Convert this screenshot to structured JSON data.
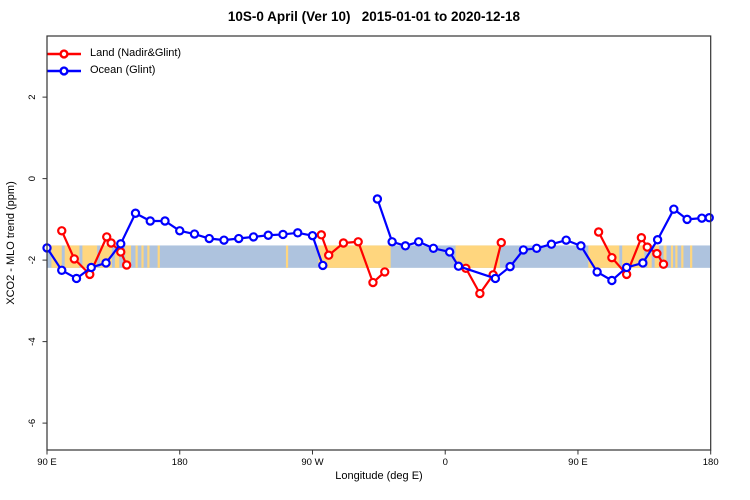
{
  "title": "10S-0 April (Ver 10)   2015-01-01 to 2020-12-18",
  "legend": {
    "items": [
      {
        "label": "Land (Nadir&Glint)",
        "color": "#ff0000"
      },
      {
        "label": "Ocean (Glint)",
        "color": "#0000ff"
      }
    ]
  },
  "chart_data": {
    "type": "line",
    "title": "10S-0 April (Ver 10)   2015-01-01 to 2020-12-18",
    "xlabel": "Longitude (deg E)",
    "ylabel": "XCO2 - MLO trend (ppm)",
    "xlim": [
      90,
      540
    ],
    "ylim": [
      -6.66,
      3.5
    ],
    "grid": false,
    "legend_position": "top-left-inside",
    "x_ticks": [
      {
        "value": 90,
        "label": "90 E"
      },
      {
        "value": 180,
        "label": "180"
      },
      {
        "value": 270,
        "label": "90 W"
      },
      {
        "value": 360,
        "label": "0"
      },
      {
        "value": 450,
        "label": "90 E"
      },
      {
        "value": 540,
        "label": "180"
      }
    ],
    "y_ticks": [
      {
        "value": 2,
        "label": "2"
      },
      {
        "value": 0,
        "label": "0"
      },
      {
        "value": -2,
        "label": "-2"
      },
      {
        "value": -4,
        "label": "-4"
      },
      {
        "value": -6,
        "label": "-6"
      }
    ],
    "ocean_band": {
      "value_from": -2.19,
      "value_to": -1.64,
      "color": "#aec3de"
    },
    "land_strip": {
      "color": "#ffd67e",
      "ranges": [
        [
          93,
          100
        ],
        [
          102,
          112
        ],
        [
          114,
          124
        ],
        [
          126,
          134
        ],
        [
          136,
          139
        ],
        [
          143,
          147
        ],
        [
          150,
          151.5
        ],
        [
          154,
          155.5
        ],
        [
          158,
          159.5
        ],
        [
          165,
          166.5
        ],
        [
          252,
          253.5
        ],
        [
          274,
          323
        ],
        [
          367,
          397
        ],
        [
          457,
          478
        ],
        [
          480,
          495
        ],
        [
          497,
          500
        ],
        [
          502,
          505
        ],
        [
          508,
          510
        ],
        [
          513,
          514.5
        ],
        [
          516,
          517.5
        ],
        [
          520,
          521.5
        ],
        [
          526,
          527.5
        ]
      ]
    },
    "series": [
      {
        "name": "Land (Nadir&Glint)",
        "color": "#ff0000",
        "segments": [
          [
            [
              100,
              -1.28
            ],
            [
              108.5,
              -1.97
            ],
            [
              119,
              -2.35
            ],
            [
              130.5,
              -1.43
            ],
            [
              133.5,
              -1.58
            ],
            [
              140,
              -1.8
            ],
            [
              144,
              -2.12
            ]
          ],
          [
            [
              276,
              -1.38
            ],
            [
              281,
              -1.88
            ],
            [
              291,
              -1.58
            ],
            [
              301,
              -1.55
            ],
            [
              311,
              -2.55
            ],
            [
              319,
              -2.29
            ]
          ],
          [
            [
              374,
              -2.2
            ],
            [
              383.5,
              -2.82
            ],
            [
              392.5,
              -2.36
            ],
            [
              398,
              -1.57
            ]
          ],
          [
            [
              464,
              -1.31
            ],
            [
              473,
              -1.94
            ],
            [
              483,
              -2.35
            ],
            [
              493,
              -1.45
            ],
            [
              497,
              -1.68
            ],
            [
              503.5,
              -1.84
            ],
            [
              508,
              -2.1
            ]
          ]
        ]
      },
      {
        "name": "Ocean (Glint)",
        "color": "#0000ff",
        "segments": [
          [
            [
              90,
              -1.7
            ],
            [
              100,
              -2.25
            ],
            [
              110,
              -2.45
            ],
            [
              120,
              -2.18
            ],
            [
              130,
              -2.07
            ],
            [
              140,
              -1.6
            ],
            [
              150,
              -0.85
            ],
            [
              160,
              -1.04
            ],
            [
              170,
              -1.04
            ],
            [
              180,
              -1.28
            ],
            [
              190,
              -1.36
            ],
            [
              200,
              -1.47
            ],
            [
              210,
              -1.51
            ],
            [
              220,
              -1.47
            ],
            [
              230,
              -1.43
            ],
            [
              240,
              -1.39
            ],
            [
              250,
              -1.37
            ],
            [
              260,
              -1.33
            ],
            [
              270,
              -1.4
            ],
            [
              277,
              -2.13
            ]
          ],
          [
            [
              314,
              -0.5
            ],
            [
              324,
              -1.55
            ],
            [
              333,
              -1.65
            ],
            [
              342,
              -1.55
            ],
            [
              352,
              -1.71
            ],
            [
              363,
              -1.8
            ],
            [
              369,
              -2.15
            ],
            [
              394,
              -2.45
            ],
            [
              404,
              -2.16
            ],
            [
              413,
              -1.75
            ],
            [
              422,
              -1.71
            ],
            [
              432,
              -1.61
            ],
            [
              442,
              -1.51
            ],
            [
              452,
              -1.65
            ],
            [
              463,
              -2.29
            ],
            [
              473,
              -2.5
            ],
            [
              483,
              -2.18
            ],
            [
              494,
              -2.07
            ],
            [
              504,
              -1.5
            ],
            [
              515,
              -0.75
            ],
            [
              524,
              -1.0
            ],
            [
              534,
              -0.97
            ],
            [
              539,
              -0.96
            ]
          ]
        ]
      }
    ],
    "axis_color": "#333333",
    "marker_style": "open-circle"
  }
}
